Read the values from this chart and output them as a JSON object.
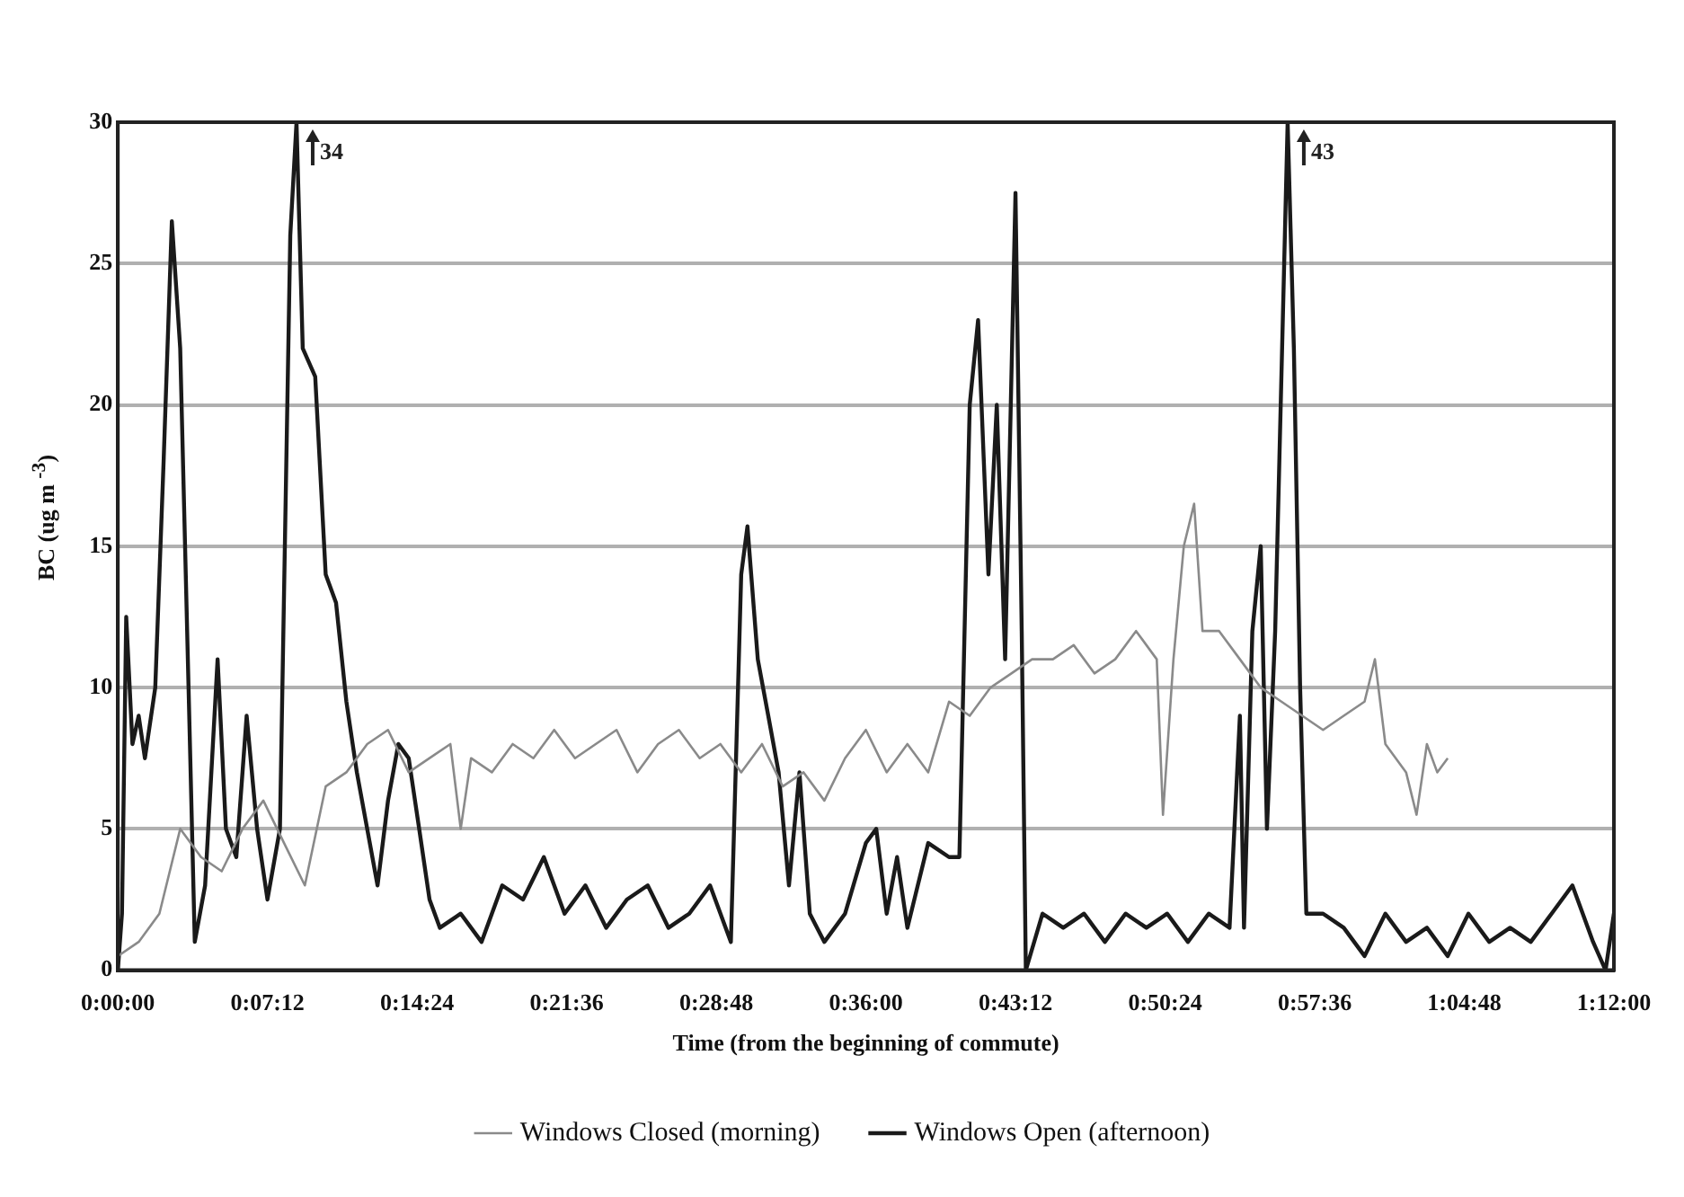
{
  "chart_data": {
    "type": "line",
    "xlabel": "Time (from the beginning of commute)",
    "ylabel": "BC (ug m $^{-3}$)",
    "xlim": [
      0,
      1.2
    ],
    "xticks": [
      {
        "value": 0,
        "label": "0:00:00"
      },
      {
        "value": 0.12,
        "label": "0:07:12"
      },
      {
        "value": 0.24,
        "label": "0:14:24"
      },
      {
        "value": 0.36,
        "label": "0:21:36"
      },
      {
        "value": 0.48,
        "label": "0:28:48"
      },
      {
        "value": 0.6,
        "label": "0:36:00"
      },
      {
        "value": 0.72,
        "label": "0:43:12"
      },
      {
        "value": 0.84,
        "label": "0:50:24"
      },
      {
        "value": 0.96,
        "label": "0:57:36"
      },
      {
        "value": 1.08,
        "label": "1:04:48"
      },
      {
        "value": 1.2,
        "label": "1:12:00"
      }
    ],
    "ylim": [
      0,
      30
    ],
    "yticks": [
      0,
      5,
      10,
      15,
      20,
      25,
      30
    ],
    "grid": "y",
    "legend": "bottom",
    "marker": "none",
    "line_style": "solid",
    "annotations": [
      {
        "text": "34",
        "x": 0.1433,
        "y": 30
      },
      {
        "text": "43",
        "x": 0.9383,
        "y": 30
      }
    ],
    "series": [
      {
        "name": "Windows Closed (morning)",
        "color": "#8a8a8a",
        "x": [
          0,
          0.0167,
          0.0333,
          0.05,
          0.0667,
          0.0833,
          0.1,
          0.1167,
          0.1333,
          0.15,
          0.1667,
          0.1833,
          0.2,
          0.2167,
          0.2333,
          0.25,
          0.2667,
          0.275,
          0.2833,
          0.3,
          0.3167,
          0.3333,
          0.35,
          0.3667,
          0.3833,
          0.4,
          0.4167,
          0.4333,
          0.45,
          0.4667,
          0.4833,
          0.5,
          0.5167,
          0.5333,
          0.55,
          0.5667,
          0.5833,
          0.6,
          0.6167,
          0.6333,
          0.65,
          0.6667,
          0.6833,
          0.7,
          0.7167,
          0.7333,
          0.75,
          0.7667,
          0.7833,
          0.8,
          0.8167,
          0.8333,
          0.8383,
          0.8467,
          0.855,
          0.8633,
          0.87,
          0.8833,
          0.9,
          0.9167,
          0.9333,
          0.95,
          0.9667,
          0.9833,
          1,
          1.0083,
          1.0167,
          1.0333,
          1.0417,
          1.05,
          1.0583,
          1.0667
        ],
        "values": [
          0.5,
          1,
          2,
          5,
          4,
          3.5,
          5,
          6,
          4.5,
          3,
          6.5,
          7,
          8,
          8.5,
          7,
          7.5,
          8,
          5,
          7.5,
          7,
          8,
          7.5,
          8.5,
          7.5,
          8,
          8.5,
          7,
          8,
          8.5,
          7.5,
          8,
          7,
          8,
          6.5,
          7,
          6,
          7.5,
          8.5,
          7,
          8,
          7,
          9.5,
          9,
          10,
          10.5,
          11,
          11,
          11.5,
          10.5,
          11,
          12,
          11,
          5.5,
          11,
          15,
          16.5,
          12,
          12,
          11,
          10,
          9.5,
          9,
          8.5,
          9,
          9.5,
          11,
          8,
          7,
          5.5,
          8,
          7,
          7.5
        ]
      },
      {
        "name": "Windows Open (afternoon)",
        "color": "#1a1a1a",
        "x": [
          0,
          0.0033,
          0.0067,
          0.0117,
          0.0167,
          0.0217,
          0.03,
          0.0367,
          0.0433,
          0.05,
          0.0567,
          0.0617,
          0.07,
          0.08,
          0.0867,
          0.095,
          0.1033,
          0.1117,
          0.12,
          0.13,
          0.1383,
          0.1433,
          0.1483,
          0.1583,
          0.1667,
          0.175,
          0.1833,
          0.1917,
          0.2,
          0.2083,
          0.2167,
          0.225,
          0.2333,
          0.2417,
          0.25,
          0.2583,
          0.275,
          0.2917,
          0.3083,
          0.325,
          0.3417,
          0.3583,
          0.375,
          0.3917,
          0.4083,
          0.425,
          0.4417,
          0.4583,
          0.475,
          0.4917,
          0.5,
          0.505,
          0.5133,
          0.5217,
          0.53,
          0.5383,
          0.5467,
          0.555,
          0.5667,
          0.5833,
          0.6,
          0.6083,
          0.6167,
          0.625,
          0.6333,
          0.65,
          0.6667,
          0.675,
          0.6833,
          0.69,
          0.6983,
          0.705,
          0.7117,
          0.72,
          0.725,
          0.7283,
          0.7417,
          0.7583,
          0.775,
          0.7917,
          0.8083,
          0.825,
          0.8417,
          0.8583,
          0.875,
          0.8917,
          0.9,
          0.9033,
          0.91,
          0.9167,
          0.9217,
          0.9283,
          0.9383,
          0.9433,
          0.9483,
          0.9533,
          0.9667,
          0.9833,
          1,
          1.0167,
          1.0333,
          1.05,
          1.0667,
          1.0833,
          1.1,
          1.1167,
          1.1333,
          1.15,
          1.1667,
          1.1833,
          1.1933,
          1.2
        ],
        "values": [
          0,
          2,
          12.5,
          8,
          9,
          7.5,
          10,
          18,
          26.5,
          22,
          10,
          1,
          3,
          11,
          5,
          4,
          9,
          5,
          2.5,
          5,
          26,
          30,
          22,
          21,
          14,
          13,
          9.5,
          7,
          5,
          3,
          6,
          8,
          7.5,
          5,
          2.5,
          1.5,
          2,
          1,
          3,
          2.5,
          4,
          2,
          3,
          1.5,
          2.5,
          3,
          1.5,
          2,
          3,
          1,
          14,
          15.7,
          11,
          9,
          7,
          3,
          7,
          2,
          1,
          2,
          4.5,
          5,
          2,
          4,
          1.5,
          4.5,
          4,
          4,
          20,
          23,
          14,
          20,
          11,
          27.5,
          12,
          0,
          2,
          1.5,
          2,
          1,
          2,
          1.5,
          2,
          1,
          2,
          1.5,
          9,
          1.5,
          12,
          15,
          5,
          12,
          30,
          22,
          10,
          2,
          2,
          1.5,
          0.5,
          2,
          1,
          1.5,
          0.5,
          2,
          1,
          1.5,
          1,
          2,
          3,
          1,
          0,
          2
        ]
      }
    ]
  }
}
